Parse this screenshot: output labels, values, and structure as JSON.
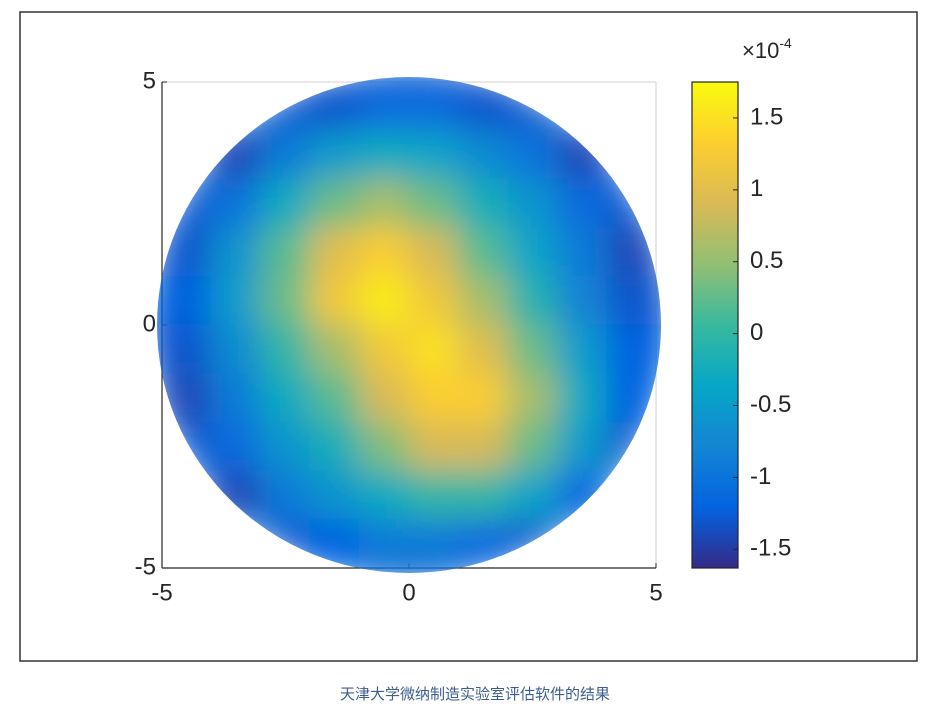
{
  "chart_data": {
    "type": "heatmap",
    "colormap": "parula",
    "xlim": [
      -5,
      5
    ],
    "ylim": [
      -5,
      5
    ],
    "xticks": [
      -5,
      0,
      5
    ],
    "yticks": [
      -5,
      0,
      5
    ],
    "x": [
      -4.5,
      -3.5,
      -2.5,
      -1.5,
      -0.5,
      0.5,
      1.5,
      2.5,
      3.5,
      4.5
    ],
    "y": [
      4.5,
      3.5,
      2.5,
      1.5,
      0.5,
      -0.5,
      -1.5,
      -2.5,
      -3.5,
      -4.5
    ],
    "z": [
      [
        null,
        null,
        null,
        -1.3,
        -1.1,
        -1.1,
        -1.3,
        null,
        null,
        null
      ],
      [
        null,
        -1.4,
        -0.9,
        -0.5,
        -0.3,
        -0.4,
        -0.7,
        -1.0,
        -1.4,
        null
      ],
      [
        null,
        -1.0,
        -0.3,
        0.3,
        0.6,
        0.3,
        -0.2,
        -0.6,
        -1.1,
        null
      ],
      [
        -1.3,
        -0.6,
        0.2,
        1.0,
        1.3,
        0.9,
        0.2,
        -0.4,
        -0.9,
        -1.4
      ],
      [
        -1.2,
        -0.5,
        0.3,
        1.2,
        1.6,
        1.2,
        0.6,
        -0.1,
        -0.8,
        -1.3
      ],
      [
        -1.3,
        -0.7,
        0.0,
        0.6,
        1.2,
        1.5,
        1.0,
        0.3,
        -0.5,
        -1.2
      ],
      [
        -1.4,
        -0.9,
        -0.3,
        0.2,
        0.9,
        1.3,
        1.3,
        0.6,
        -0.3,
        -1.2
      ],
      [
        null,
        -1.1,
        -0.6,
        -0.2,
        0.4,
        0.9,
        0.9,
        0.3,
        -0.5,
        null
      ],
      [
        null,
        -1.4,
        -0.9,
        -0.6,
        -0.3,
        0.0,
        0.0,
        -0.4,
        -1.1,
        null
      ],
      [
        null,
        null,
        null,
        -1.2,
        -0.9,
        -0.9,
        -1.1,
        null,
        null,
        null
      ]
    ],
    "clim": [
      -1.63,
      1.75
    ],
    "cticks": [
      -1.5,
      -1,
      -0.5,
      0,
      0.5,
      1,
      1.5
    ],
    "colorbar_multiplier": {
      "base": "×10",
      "exponent": "-4"
    },
    "caption": "天津大学微纳制造实验室评估软件的结果"
  }
}
